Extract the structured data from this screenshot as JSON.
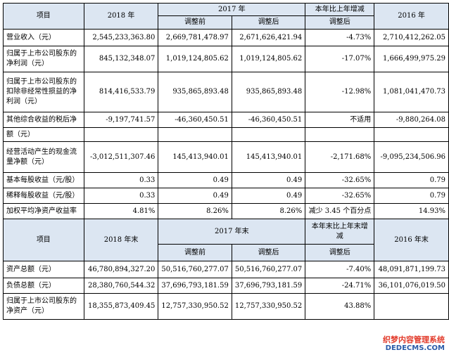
{
  "top_header": {
    "item": "项目",
    "y2018": "2018 年",
    "y2017": "2017 年",
    "change": "本年比上年增减",
    "y2016": "2016 年",
    "before_adj": "调整前",
    "after_adj": "调整后",
    "change_sub": "调整后"
  },
  "top_rows": [
    {
      "label": "营业收入（元）",
      "v2018": "2,545,233,363.80",
      "before": "2,669,781,478.97",
      "after": "2,671,626,421.94",
      "change": "-4.73%",
      "v2016": "2,710,412,262.05"
    },
    {
      "label": "归属于上市公司股东的净利润（元）",
      "v2018": "845,132,348.07",
      "before": "1,019,124,805.62",
      "after": "1,019,124,805.62",
      "change": "-17.07%",
      "v2016": "1,666,499,975.29"
    },
    {
      "label": "归属于上市公司股东的扣除非经常性损益的净利润（元）",
      "v2018": "814,416,533.79",
      "before": "935,865,893.48",
      "after": "935,865,893.48",
      "change": "-12.98%",
      "v2016": "1,081,041,470.73"
    },
    {
      "label": "其他综合收益的税后净",
      "v2018": "-9,197,741.57",
      "before": "-46,360,450.51",
      "after": "-46,360,450.51",
      "change": "不适用",
      "v2016": "-9,880,264.08"
    },
    {
      "label": "额（元）",
      "v2018": "",
      "before": "",
      "after": "",
      "change": "",
      "v2016": ""
    },
    {
      "label": "经营活动产生的现金流量净额（元）",
      "v2018": "-3,012,511,307.46",
      "before": "145,413,940.01",
      "after": "145,413,940.01",
      "change": "-2,171.68%",
      "v2016": "-9,095,234,506.96"
    },
    {
      "label": "基本每股收益（元/股）",
      "v2018": "0.33",
      "before": "0.49",
      "after": "0.49",
      "change": "-32.65%",
      "v2016": "0.79"
    },
    {
      "label": "稀释每股收益（元/股）",
      "v2018": "0.33",
      "before": "0.49",
      "after": "0.49",
      "change": "-32.65%",
      "v2016": "0.79"
    },
    {
      "label": "加权平均净资产收益率",
      "v2018": "4.81%",
      "before": "8.26%",
      "after": "8.26%",
      "change": "减少 3.45 个百分点",
      "v2016": "14.93%"
    }
  ],
  "bottom_header": {
    "item": "项目",
    "y2018": "2018 年末",
    "y2017": "2017 年末",
    "change": "本年末比上年末增减",
    "y2016": "2016 年末",
    "before_adj": "调整前",
    "after_adj": "调整后",
    "change_sub": "调整后"
  },
  "bottom_rows": [
    {
      "label": "资产总额（元）",
      "v2018": "46,780,894,327.20",
      "before": "50,516,760,277.07",
      "after": "50,516,760,277.07",
      "change": "-7.40%",
      "v2016": "48,091,871,199.73"
    },
    {
      "label": "负债总额（元）",
      "v2018": "28,380,760,544.32",
      "before": "37,696,793,181.59",
      "after": "37,696,793,181.59",
      "change": "-24.71%",
      "v2016": "36,101,076,019.50"
    },
    {
      "label": "归属于上市公司股东的净资产（元）",
      "v2018": "18,355,873,409.45",
      "before": "12,757,330,950.52",
      "after": "12,757,330,950.52",
      "change": "43.88%",
      "v2016": ""
    }
  ],
  "watermark": {
    "line1": "织梦内容管理系统",
    "line2": "DEDECMS.COM"
  }
}
